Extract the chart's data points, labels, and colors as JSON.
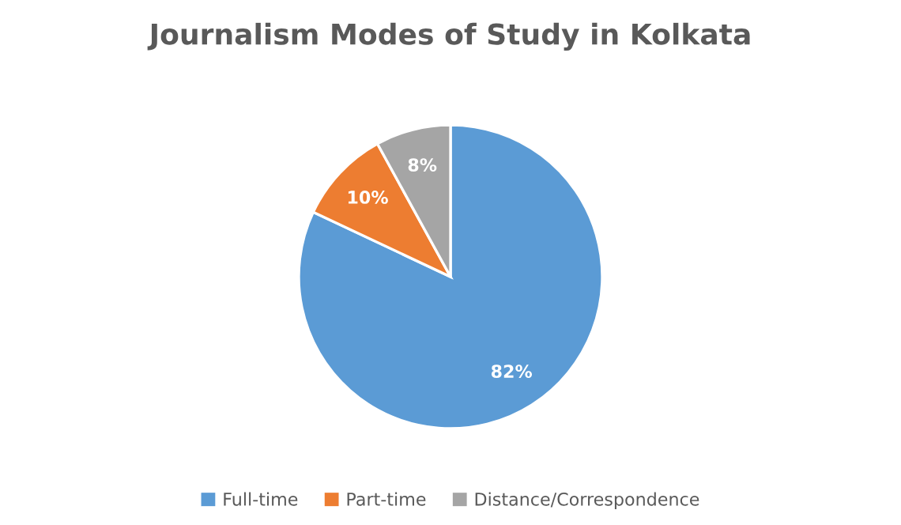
{
  "chart_data": {
    "type": "pie",
    "title": "Journalism Modes of Study in Kolkata",
    "categories": [
      "Full-time",
      "Part-time",
      "Distance/Correspondence"
    ],
    "values": [
      82,
      10,
      8
    ],
    "colors": [
      "#5b9bd5",
      "#ed7d31",
      "#a5a5a5"
    ],
    "value_labels": [
      "82%",
      "10%",
      "8%"
    ],
    "legend": "bottom"
  }
}
